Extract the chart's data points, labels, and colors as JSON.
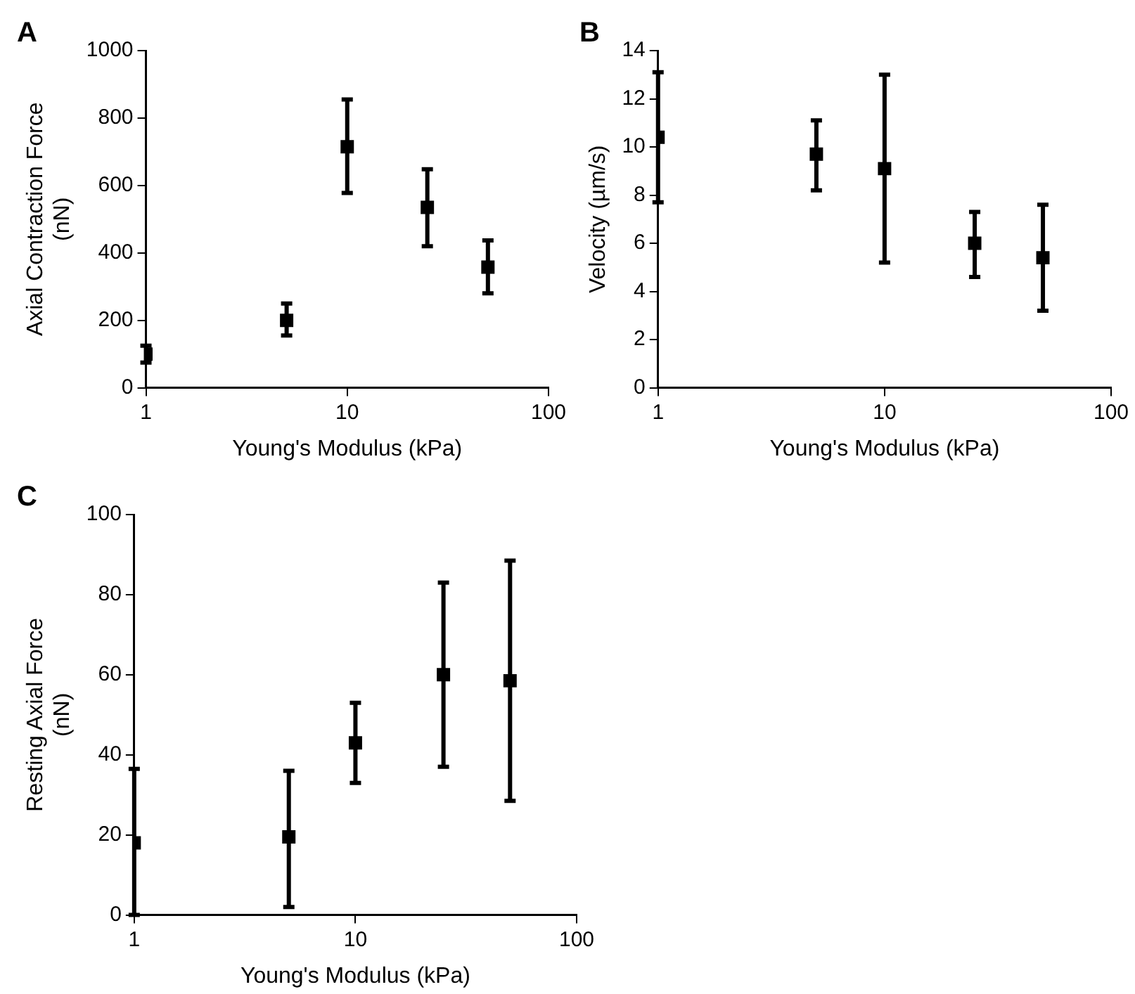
{
  "chart_data": [
    {
      "type": "scatter",
      "title": "A",
      "xlabel": "Young's Modulus (kPa)",
      "ylabel": "Axial Contraction Force (nN)",
      "x": [
        1,
        5,
        10,
        25,
        50
      ],
      "series": [
        {
          "color": "#000000",
          "values": [
            100,
            200,
            715,
            535,
            358
          ],
          "errors": [
            [
              75,
              125
            ],
            [
              155,
              250
            ],
            [
              578,
              855
            ],
            [
              420,
              648
            ],
            [
              280,
              437
            ]
          ]
        }
      ],
      "log": "x",
      "xlim": [
        1,
        100
      ],
      "xticks": [
        1,
        10,
        100
      ],
      "ylim": [
        0,
        1000
      ],
      "yticks": [
        0,
        200,
        400,
        600,
        800,
        1000
      ],
      "grid": false,
      "legend": false,
      "marker": "square"
    },
    {
      "type": "scatter",
      "title": "B",
      "xlabel": "Young's Modulus (kPa)",
      "ylabel": "Velocity (µm/s)",
      "x": [
        1,
        5,
        10,
        25,
        50
      ],
      "series": [
        {
          "color": "#000000",
          "values": [
            10.4,
            9.7,
            9.1,
            6.0,
            5.4
          ],
          "errors": [
            [
              7.7,
              13.1
            ],
            [
              8.2,
              11.1
            ],
            [
              5.2,
              13.0
            ],
            [
              4.6,
              7.3
            ],
            [
              3.2,
              7.6
            ]
          ]
        }
      ],
      "log": "x",
      "xlim": [
        1,
        100
      ],
      "xticks": [
        1,
        10,
        100
      ],
      "ylim": [
        0,
        14
      ],
      "yticks": [
        0,
        2,
        4,
        6,
        8,
        10,
        12,
        14
      ],
      "grid": false,
      "legend": false,
      "marker": "square"
    },
    {
      "type": "scatter",
      "title": "C",
      "xlabel": "Young's Modulus (kPa)",
      "ylabel": "Resting Axial Force (nN)",
      "x": [
        1,
        5,
        10,
        25,
        50
      ],
      "series": [
        {
          "color": "#000000",
          "values": [
            18,
            19.5,
            43,
            60,
            58.5
          ],
          "errors": [
            [
              0,
              36.5
            ],
            [
              2,
              36
            ],
            [
              33,
              53
            ],
            [
              37,
              83
            ],
            [
              28.5,
              88.5
            ]
          ]
        }
      ],
      "log": "x",
      "xlim": [
        1,
        100
      ],
      "xticks": [
        1,
        10,
        100
      ],
      "ylim": [
        0,
        100
      ],
      "yticks": [
        0,
        20,
        40,
        60,
        80,
        100
      ],
      "grid": false,
      "legend": false,
      "marker": "square"
    }
  ]
}
